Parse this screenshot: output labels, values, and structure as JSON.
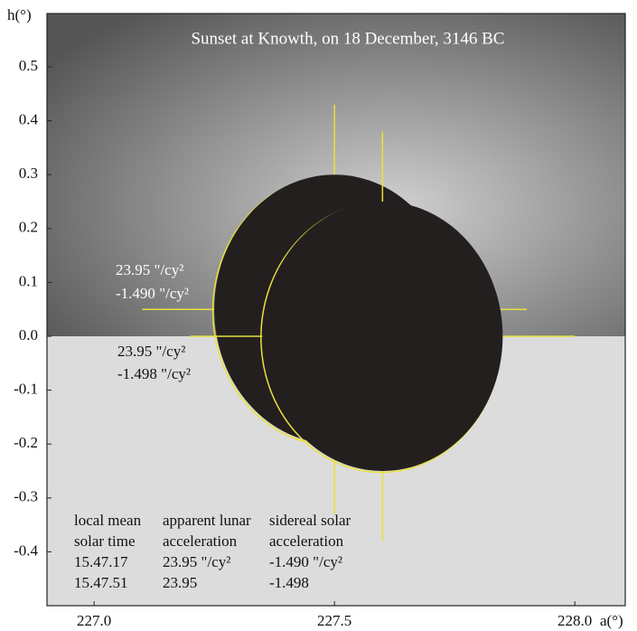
{
  "chart_data": {
    "type": "scatter",
    "title": "Sunset at Knowth, on 18 December, 3146 BC",
    "xlabel": "a(°)",
    "ylabel": "h(°)",
    "xlim": [
      226.902,
      228.105
    ],
    "ylim": [
      -0.5,
      0.599
    ],
    "xticks": [
      {
        "value": 227,
        "label": "227.0"
      },
      227.5,
      {
        "value": 228,
        "label": "228.0"
      }
    ],
    "yticks": [
      0.5,
      0.4,
      0.3,
      0.2,
      0.1,
      {
        "value": 0,
        "label": "0.0"
      },
      -0.1,
      -0.2,
      -0.3,
      -0.4
    ],
    "discs": [
      {
        "a": 227.5,
        "h": 0.05,
        "radius": 0.25
      },
      {
        "a": 227.6,
        "h": 0.0,
        "radius": 0.25
      }
    ],
    "crosshair": [
      0.4,
      0.38
    ],
    "disc_color": "#231f1e",
    "crosshair_color": "#e8e23c",
    "sky_color": "#d0d0d0",
    "ground_color": "#dcdcdc",
    "annotations_upper": [
      "23.95 \"/cy²",
      "-1.490 \"/cy²"
    ],
    "annotations_lower": [
      "23.95 \"/cy²",
      "-1.498 \"/cy²"
    ],
    "table": [
      {
        "header": [
          "local mean",
          "solar time"
        ],
        "rows": [
          "15.47.17",
          "15.47.51"
        ]
      },
      {
        "header": [
          "apparent lunar",
          "acceleration"
        ],
        "rows": [
          "23.95 \"/cy²",
          "23.95"
        ]
      },
      {
        "header": [
          "sidereal solar",
          "acceleration"
        ],
        "rows": [
          "-1.490 \"/cy²",
          "-1.498"
        ]
      }
    ]
  }
}
